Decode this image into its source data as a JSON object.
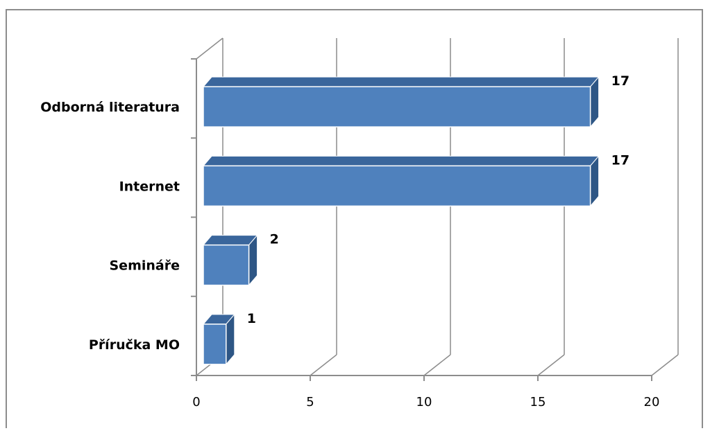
{
  "chart_data": {
    "type": "bar",
    "orientation": "horizontal",
    "style": "3d",
    "categories": [
      "Odborná literatura",
      "Internet",
      "Semináře",
      "Příručka MO"
    ],
    "values": [
      17,
      17,
      2,
      1
    ],
    "data_labels": [
      "17",
      "17",
      "2",
      "1"
    ],
    "xlim": [
      0,
      20
    ],
    "xticks": [
      0,
      5,
      10,
      15,
      20
    ],
    "xtick_labels": [
      "0",
      "5",
      "10",
      "15",
      "20"
    ],
    "title": "",
    "xlabel": "",
    "ylabel": "",
    "grid": true,
    "legend": "none",
    "colors": {
      "bar_front": "#4f81bd",
      "bar_top": "#3a669c",
      "bar_side": "#2e5685",
      "grid": "#8c8c8c"
    }
  }
}
